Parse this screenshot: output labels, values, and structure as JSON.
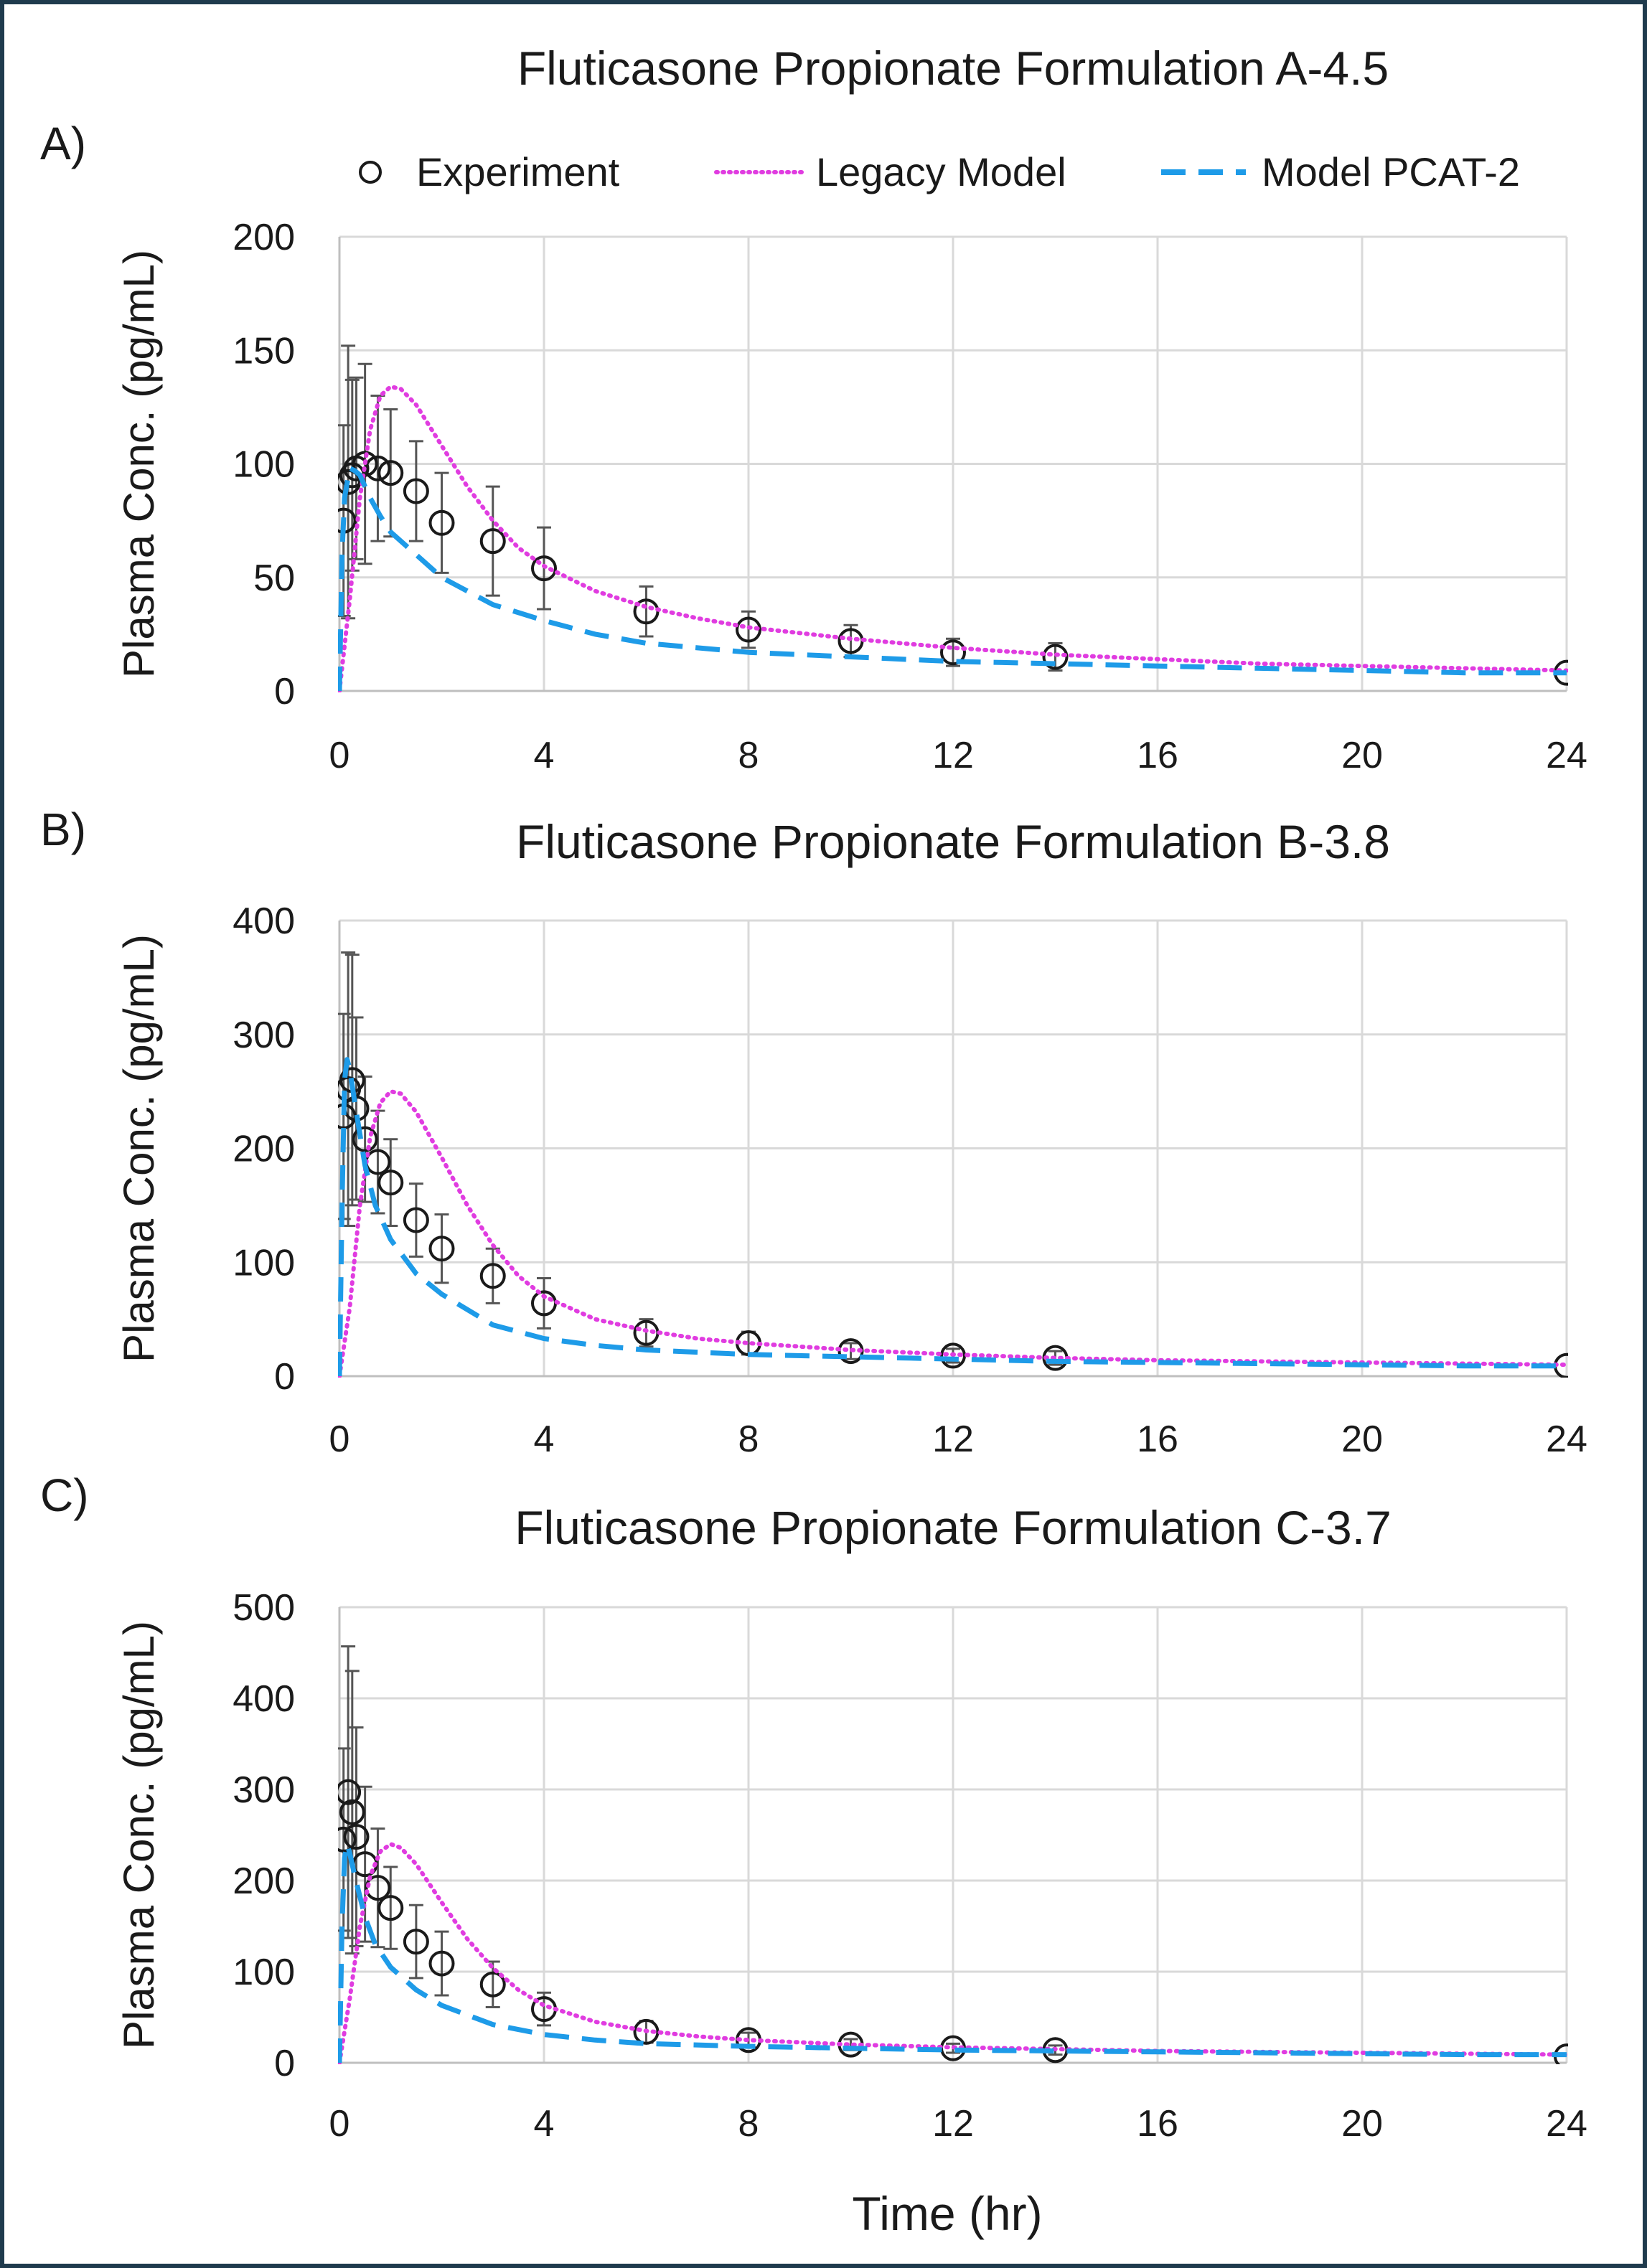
{
  "legend": {
    "items": [
      {
        "label": "Experiment",
        "marker": "circle",
        "color": "#1a1a1a"
      },
      {
        "label": "Legacy Model",
        "marker": "dotted-line",
        "color": "#e03ce0"
      },
      {
        "label": "Model PCAT-2",
        "marker": "dashed-line",
        "color": "#1e9be8"
      }
    ]
  },
  "xlabel": "Time (hr)",
  "colors": {
    "experiment": "#1a1a1a",
    "legacy": "#e03ce0",
    "pcat": "#1e9be8",
    "grid": "#d9d9d9",
    "frame": "#1f3b4d"
  },
  "chart_data": [
    {
      "type": "line",
      "panel_label": "A)",
      "title": "Fluticasone Propionate Formulation A-4.5",
      "xlabel": "",
      "ylabel": "Plasma Conc. (pg/mL)",
      "xlim": [
        0,
        24
      ],
      "ylim": [
        0,
        200
      ],
      "xticks": [
        0,
        4,
        8,
        12,
        16,
        20,
        24
      ],
      "yticks": [
        0,
        50,
        100,
        150,
        200
      ],
      "grid": true,
      "legend_position": "top",
      "series": [
        {
          "name": "Experiment",
          "style": "markers",
          "x": [
            0.08,
            0.17,
            0.25,
            0.33,
            0.5,
            0.75,
            1,
            1.5,
            2,
            3,
            4,
            6,
            8,
            10,
            12,
            14,
            24
          ],
          "y": [
            75,
            92,
            95,
            98,
            100,
            98,
            96,
            88,
            74,
            66,
            54,
            35,
            27,
            22,
            17,
            15,
            8
          ],
          "err": [
            42,
            60,
            42,
            40,
            44,
            32,
            28,
            22,
            22,
            24,
            18,
            11,
            8,
            7,
            6,
            6,
            0
          ]
        },
        {
          "name": "Legacy Model",
          "style": "dotted",
          "x": [
            0,
            0.2,
            0.4,
            0.6,
            0.8,
            1.0,
            1.2,
            1.5,
            2,
            2.5,
            3,
            3.5,
            4,
            5,
            6,
            7,
            8,
            10,
            12,
            14,
            16,
            18,
            20,
            22,
            24
          ],
          "y": [
            0,
            40,
            85,
            115,
            130,
            134,
            133,
            126,
            108,
            90,
            75,
            63,
            55,
            44,
            37,
            32,
            28,
            23,
            19,
            16,
            14,
            12,
            11,
            10,
            9
          ]
        },
        {
          "name": "Model PCAT-2",
          "style": "dashed",
          "x": [
            0,
            0.05,
            0.1,
            0.2,
            0.3,
            0.4,
            0.6,
            0.8,
            1.0,
            1.5,
            2,
            3,
            4,
            5,
            6,
            8,
            10,
            12,
            14,
            16,
            18,
            20,
            22,
            24
          ],
          "y": [
            0,
            60,
            85,
            98,
            97,
            95,
            85,
            77,
            70,
            60,
            50,
            38,
            31,
            25,
            21,
            17,
            15,
            13,
            12,
            11,
            10,
            9,
            8,
            8
          ]
        }
      ]
    },
    {
      "type": "line",
      "panel_label": "B)",
      "title": "Fluticasone Propionate Formulation B-3.8",
      "xlabel": "",
      "ylabel": "Plasma Conc. (pg/mL)",
      "xlim": [
        0,
        24
      ],
      "ylim": [
        0,
        400
      ],
      "xticks": [
        0,
        4,
        8,
        12,
        16,
        20,
        24
      ],
      "yticks": [
        0,
        100,
        200,
        300,
        400
      ],
      "grid": true,
      "series": [
        {
          "name": "Experiment",
          "style": "markers",
          "x": [
            0.08,
            0.17,
            0.25,
            0.33,
            0.5,
            0.75,
            1,
            1.5,
            2,
            3,
            4,
            6,
            8,
            10,
            12,
            14,
            24
          ],
          "y": [
            228,
            252,
            260,
            235,
            208,
            188,
            170,
            137,
            112,
            88,
            64,
            38,
            29,
            22,
            18,
            16,
            9
          ],
          "err": [
            90,
            120,
            110,
            80,
            55,
            45,
            38,
            32,
            30,
            24,
            22,
            12,
            10,
            7,
            6,
            6,
            0
          ]
        },
        {
          "name": "Legacy Model",
          "style": "dotted",
          "x": [
            0,
            0.2,
            0.4,
            0.6,
            0.8,
            1.0,
            1.2,
            1.5,
            2,
            2.5,
            3,
            3.5,
            4,
            5,
            6,
            7,
            8,
            10,
            12,
            14,
            16,
            18,
            20,
            22,
            24
          ],
          "y": [
            0,
            60,
            150,
            210,
            240,
            250,
            248,
            232,
            192,
            150,
            115,
            88,
            70,
            50,
            40,
            33,
            29,
            23,
            19,
            16,
            14,
            13,
            12,
            11,
            10
          ]
        },
        {
          "name": "Model PCAT-2",
          "style": "dashed",
          "x": [
            0,
            0.05,
            0.1,
            0.15,
            0.2,
            0.3,
            0.5,
            0.7,
            1.0,
            1.5,
            2,
            3,
            4,
            5,
            6,
            8,
            10,
            12,
            14,
            16,
            18,
            20,
            22,
            24
          ],
          "y": [
            0,
            150,
            260,
            278,
            270,
            240,
            185,
            150,
            120,
            90,
            72,
            45,
            33,
            27,
            23,
            19,
            17,
            15,
            13,
            12,
            11,
            10,
            9,
            9
          ]
        }
      ]
    },
    {
      "type": "line",
      "panel_label": "C)",
      "title": "Fluticasone Propionate Formulation C-3.7",
      "xlabel": "Time (hr)",
      "ylabel": "Plasma Conc. (pg/mL)",
      "xlim": [
        0,
        24
      ],
      "ylim": [
        0,
        500
      ],
      "xticks": [
        0,
        4,
        8,
        12,
        16,
        20,
        24
      ],
      "yticks": [
        0,
        100,
        200,
        300,
        400,
        500
      ],
      "grid": true,
      "series": [
        {
          "name": "Experiment",
          "style": "markers",
          "x": [
            0.08,
            0.17,
            0.25,
            0.33,
            0.5,
            0.75,
            1,
            1.5,
            2,
            3,
            4,
            6,
            8,
            10,
            12,
            14,
            24
          ],
          "y": [
            245,
            297,
            275,
            248,
            218,
            192,
            170,
            133,
            109,
            86,
            59,
            34,
            25,
            20,
            16,
            14,
            7
          ],
          "err": [
            100,
            160,
            155,
            120,
            85,
            65,
            45,
            40,
            35,
            25,
            18,
            12,
            8,
            6,
            5,
            5,
            0
          ]
        },
        {
          "name": "Legacy Model",
          "style": "dotted",
          "x": [
            0,
            0.2,
            0.4,
            0.6,
            0.8,
            1.0,
            1.2,
            1.5,
            2,
            2.5,
            3,
            3.5,
            4,
            5,
            6,
            7,
            8,
            10,
            12,
            14,
            16,
            18,
            20,
            22,
            24
          ],
          "y": [
            0,
            70,
            150,
            205,
            232,
            240,
            236,
            218,
            176,
            136,
            104,
            80,
            63,
            45,
            35,
            29,
            25,
            20,
            17,
            15,
            13,
            12,
            11,
            10,
            9
          ]
        },
        {
          "name": "Model PCAT-2",
          "style": "dashed",
          "x": [
            0,
            0.05,
            0.1,
            0.15,
            0.2,
            0.3,
            0.5,
            0.7,
            1.0,
            1.5,
            2,
            3,
            4,
            5,
            6,
            8,
            10,
            12,
            14,
            16,
            18,
            20,
            22,
            24
          ],
          "y": [
            0,
            150,
            225,
            240,
            230,
            205,
            160,
            130,
            105,
            80,
            63,
            42,
            31,
            25,
            21,
            18,
            16,
            14,
            13,
            12,
            11,
            10,
            9,
            9
          ]
        }
      ]
    }
  ]
}
